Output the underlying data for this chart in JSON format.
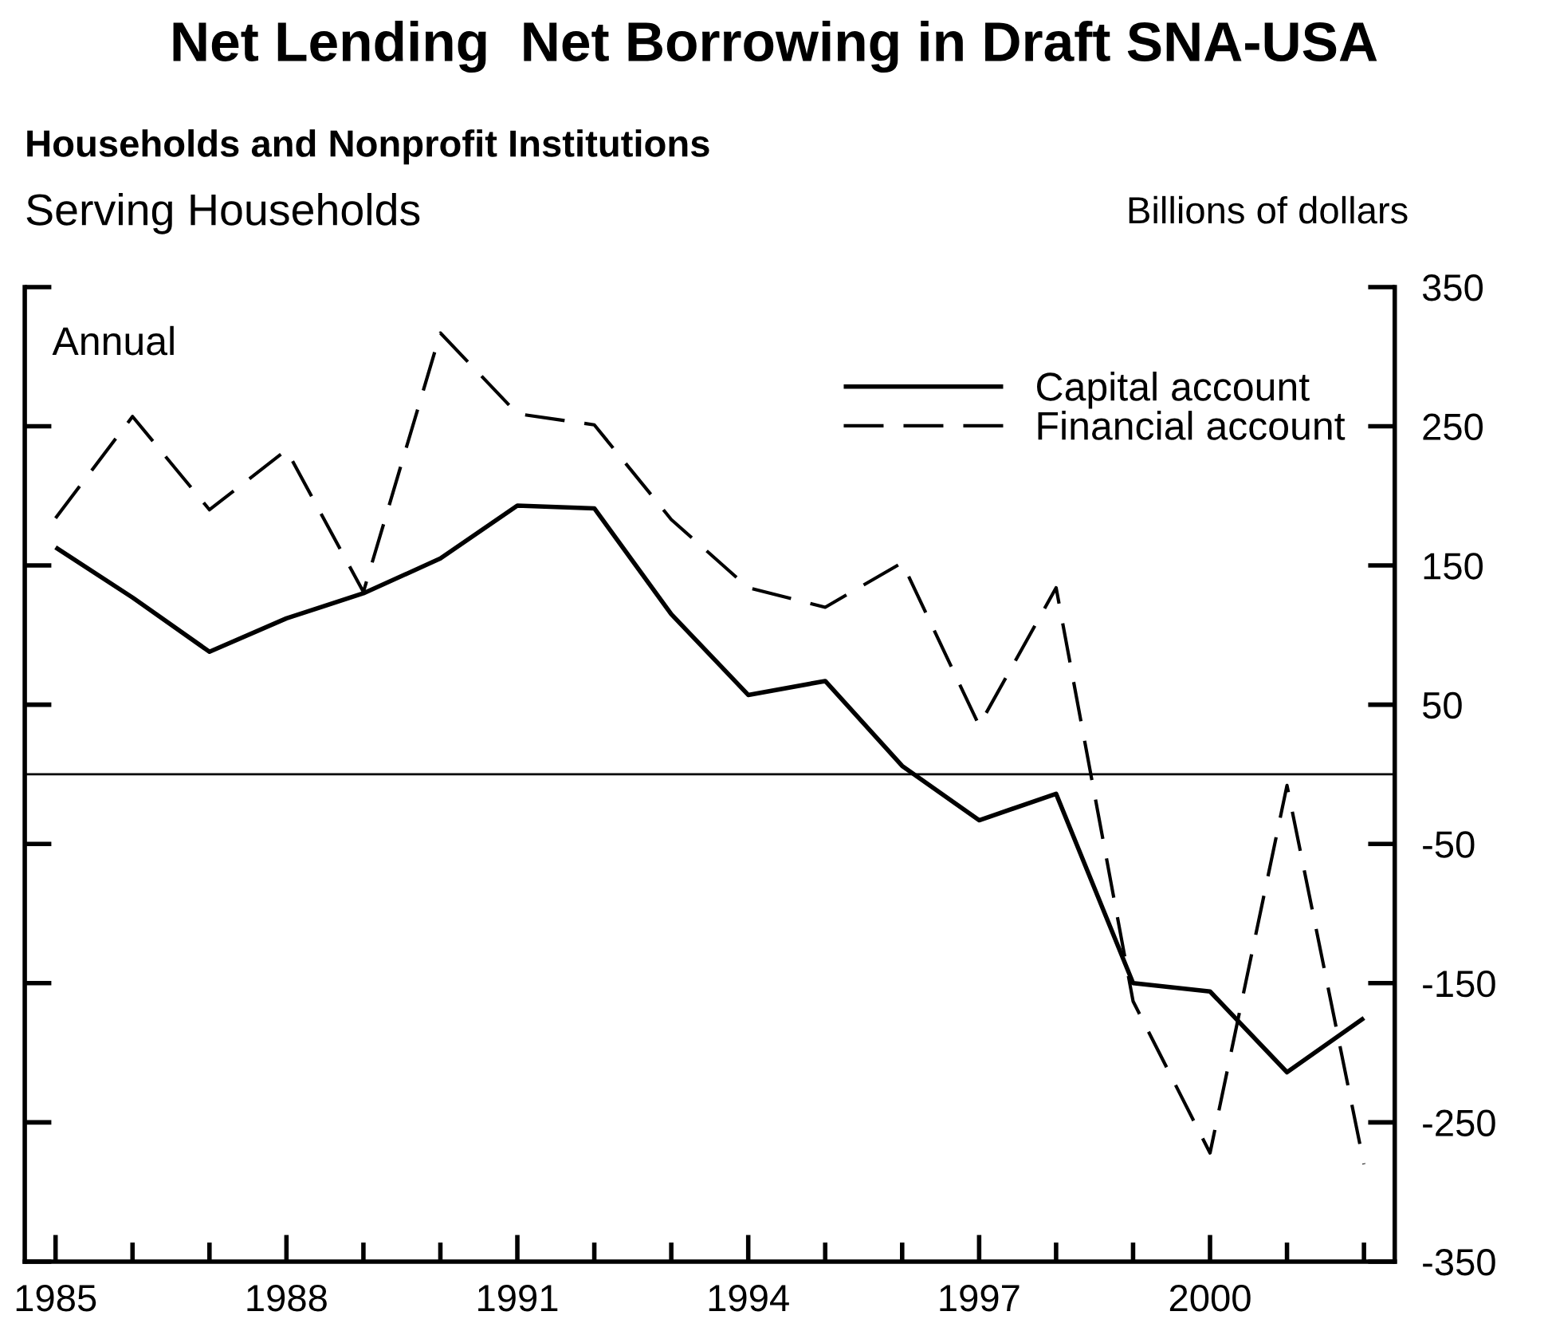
{
  "chart_data": {
    "type": "line",
    "title": "Net Lending  Net Borrowing in Draft SNA-USA",
    "subtitle": [
      "Households and Nonprofit Institutions",
      "Serving Households"
    ],
    "ylabel": "Billions of dollars",
    "annotations": [
      "Annual"
    ],
    "x": [
      1985,
      1986,
      1987,
      1988,
      1989,
      1990,
      1991,
      1992,
      1993,
      1994,
      1995,
      1996,
      1997,
      1998,
      1999,
      2000,
      2001,
      2002
    ],
    "series": [
      {
        "name": "Capital account",
        "color": "#000000",
        "line_style": "solid",
        "values": [
          163,
          127,
          88,
          112,
          130,
          155,
          193,
          191,
          115,
          57,
          67,
          6,
          -33,
          -14,
          -150,
          -156,
          -214,
          -175
        ]
      },
      {
        "name": "Financial account",
        "color": "#000000",
        "line_style": "dashed",
        "values": [
          184,
          257,
          190,
          233,
          131,
          317,
          259,
          251,
          183,
          134,
          120,
          152,
          35,
          134,
          -163,
          -272,
          -8,
          -280
        ]
      }
    ],
    "xlim": [
      1984.6,
      2002.4
    ],
    "xticks": [
      1985,
      {
        "value": 1986,
        "label": null
      },
      {
        "value": 1987,
        "label": null
      },
      1988,
      {
        "value": 1989,
        "label": null
      },
      {
        "value": 1990,
        "label": null
      },
      1991,
      {
        "value": 1992,
        "label": null
      },
      {
        "value": 1993,
        "label": null
      },
      1994,
      {
        "value": 1995,
        "label": null
      },
      {
        "value": 1996,
        "label": null
      },
      1997,
      {
        "value": 1998,
        "label": null
      },
      {
        "value": 1999,
        "label": null
      },
      2000,
      {
        "value": 2001,
        "label": null
      },
      {
        "value": 2002,
        "label": null
      }
    ],
    "ylim": [
      -350,
      350
    ],
    "yticks": [
      -350,
      -250,
      -150,
      -50,
      50,
      150,
      250,
      350
    ],
    "ref_lines": [
      {
        "axis": "y",
        "value": 0,
        "color": "#000000"
      }
    ],
    "grid": false,
    "legend": "top right",
    "marker": "none"
  }
}
